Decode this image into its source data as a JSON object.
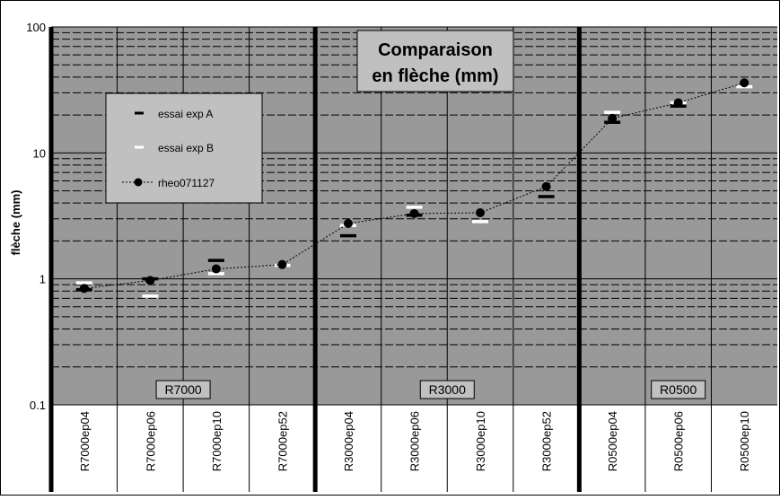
{
  "chart_data": {
    "type": "scatter",
    "title": "",
    "annotation_lines": [
      "Comparaison",
      "en flèche (mm)"
    ],
    "xlabel": "",
    "ylabel": "flèche (mm)",
    "yscale": "log",
    "ylim": [
      0.1,
      100
    ],
    "yticks": [
      "0.1",
      "1",
      "10",
      "100"
    ],
    "grid": true,
    "legend_position": "upper-left",
    "categories": [
      "R7000ep04",
      "R7000ep06",
      "R7000ep10",
      "R7000ep52",
      "R3000ep04",
      "R3000ep06",
      "R3000ep10",
      "R3000ep52",
      "R0500ep04",
      "R0500ep06",
      "R0500ep10"
    ],
    "groups": [
      {
        "label": "R7000",
        "categories": [
          0,
          1,
          2,
          3
        ]
      },
      {
        "label": "R3000",
        "categories": [
          4,
          5,
          6,
          7
        ]
      },
      {
        "label": "R0500",
        "categories": [
          8,
          9,
          10
        ]
      }
    ],
    "series": [
      {
        "name": "essai exp A",
        "marker": "dash",
        "color": "#000000",
        "values": [
          0.82,
          1.0,
          1.4,
          null,
          2.2,
          3.2,
          null,
          4.5,
          17.5,
          23.5,
          null
        ]
      },
      {
        "name": "essai exp B",
        "marker": "dash",
        "color": "#ffffff",
        "values": [
          0.93,
          0.73,
          1.1,
          1.28,
          2.65,
          3.7,
          2.85,
          null,
          21.0,
          25.0,
          33.5
        ]
      },
      {
        "name": "rheo071127",
        "marker": "dot-dotted-line",
        "color": "#000000",
        "values": [
          0.84,
          0.97,
          1.2,
          1.3,
          2.75,
          3.3,
          3.35,
          5.4,
          18.8,
          25.0,
          36.0
        ]
      }
    ],
    "colors": {
      "plot_background": "#999999",
      "group_divider": "#000000",
      "label_box": "#c0c0c0"
    }
  }
}
